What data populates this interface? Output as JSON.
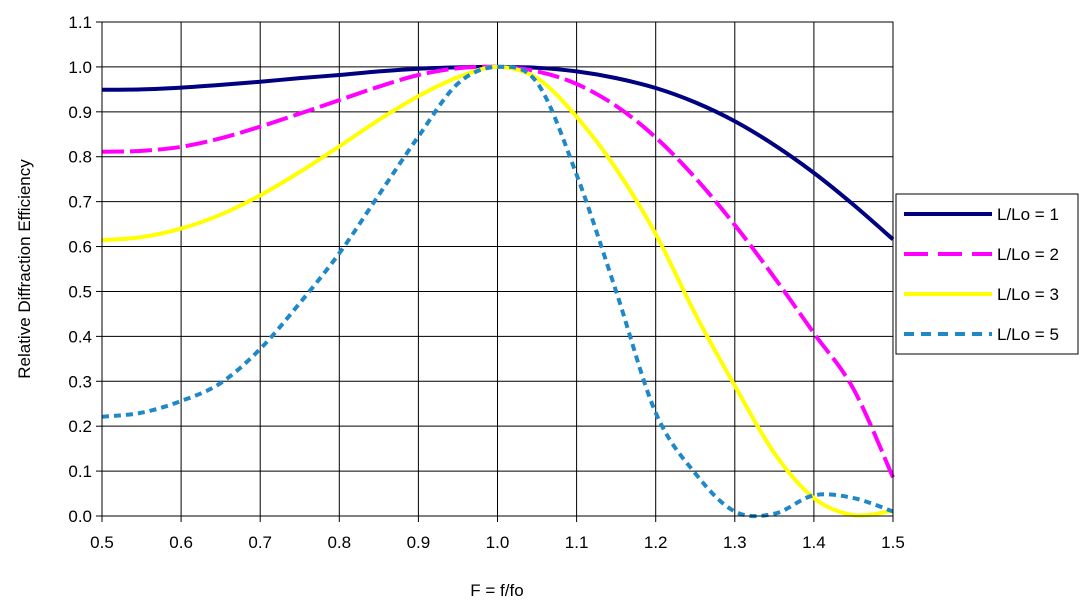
{
  "chart_data": {
    "type": "line",
    "title": "",
    "xlabel": "F = f/fo",
    "ylabel": "Relative Diffraction Efficiency",
    "xlim": [
      0.5,
      1.5
    ],
    "ylim": [
      0.0,
      1.1
    ],
    "x_ticks": [
      "0.5",
      "0.6",
      "0.7",
      "0.8",
      "0.9",
      "1.0",
      "1.1",
      "1.2",
      "1.3",
      "1.4",
      "1.5"
    ],
    "y_ticks": [
      "0.0",
      "0.1",
      "0.2",
      "0.3",
      "0.4",
      "0.5",
      "0.6",
      "0.7",
      "0.8",
      "0.9",
      "1.0",
      "1.1"
    ],
    "grid": true,
    "legend_position": "right",
    "x": [
      0.5,
      0.55,
      0.6,
      0.65,
      0.7,
      0.75,
      0.8,
      0.85,
      0.9,
      0.95,
      1.0,
      1.05,
      1.1,
      1.15,
      1.2,
      1.25,
      1.3,
      1.35,
      1.4,
      1.45,
      1.5
    ],
    "series": [
      {
        "name": "L/Lo = 1",
        "color": "#000080",
        "dash": "solid",
        "values": [
          0.949,
          0.95,
          0.954,
          0.96,
          0.967,
          0.975,
          0.982,
          0.99,
          0.996,
          0.999,
          1.0,
          0.998,
          0.99,
          0.975,
          0.953,
          0.921,
          0.879,
          0.826,
          0.764,
          0.693,
          0.616
        ]
      },
      {
        "name": "L/Lo = 2",
        "color": "#ff00ff",
        "dash": "dashed",
        "values": [
          0.811,
          0.813,
          0.822,
          0.841,
          0.867,
          0.896,
          0.926,
          0.956,
          0.982,
          0.997,
          1.0,
          0.99,
          0.962,
          0.913,
          0.843,
          0.753,
          0.648,
          0.531,
          0.407,
          0.283,
          0.086
        ]
      },
      {
        "name": "L/Lo = 3",
        "color": "#ffff00",
        "dash": "solid",
        "values": [
          0.614,
          0.621,
          0.64,
          0.671,
          0.714,
          0.766,
          0.823,
          0.882,
          0.935,
          0.977,
          1.0,
          0.975,
          0.889,
          0.773,
          0.628,
          0.45,
          0.29,
          0.14,
          0.04,
          0.002,
          0.012
        ]
      },
      {
        "name": "L/Lo = 5",
        "color": "#1f88c8",
        "dash": "dotted",
        "values": [
          0.221,
          0.23,
          0.256,
          0.296,
          0.372,
          0.474,
          0.585,
          0.715,
          0.845,
          0.963,
          1.0,
          0.965,
          0.76,
          0.5,
          0.23,
          0.095,
          0.01,
          0.005,
          0.046,
          0.04,
          0.01
        ]
      }
    ]
  }
}
